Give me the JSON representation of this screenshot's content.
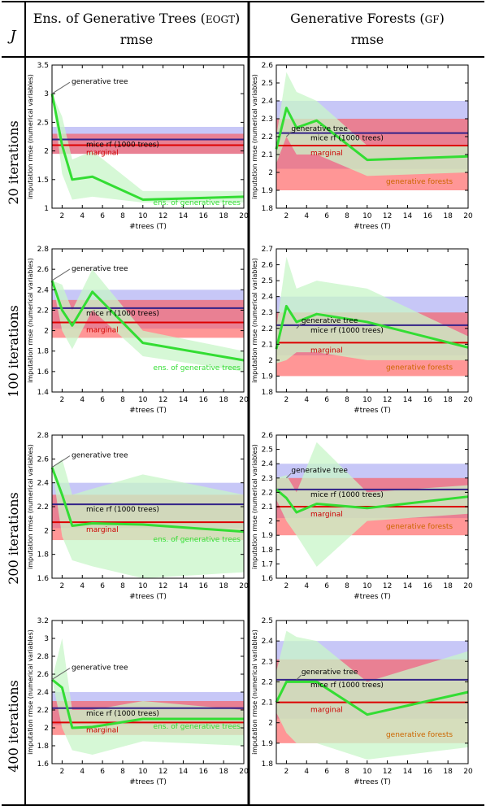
{
  "header": {
    "j_label": "J",
    "col1_title": "Ens. of Generative Trees",
    "col1_abbrev": "EOGT",
    "col1_sub": "rmse",
    "col2_title": "Generative Forests",
    "col2_abbrev": "GF",
    "col2_sub": "rmse"
  },
  "rows": [
    {
      "label": "20 iterations"
    },
    {
      "label": "100 iterations"
    },
    {
      "label": "200 iterations"
    },
    {
      "label": "400 iterations"
    }
  ],
  "colors": {
    "green": "#33dd33",
    "green_band": "#c8f5c8",
    "blue_line": "#332288",
    "blue_band": "#b9b9f5",
    "red_line": "#dd0000",
    "red_band": "#ff5050",
    "orange_text": "#cc6600",
    "label_red": "#cc0000"
  },
  "chart_data": [
    {
      "type": "line",
      "row": 0,
      "col": 0,
      "xlabel": "#trees (T)",
      "ylabel": "imputation rmse (numerical variables)",
      "xlim": [
        1,
        20
      ],
      "ylim": [
        1,
        3.5
      ],
      "xticks": [
        "2",
        "4",
        "6",
        "8",
        "10",
        "12",
        "14",
        "16",
        "18",
        "20"
      ],
      "yticks": [
        "1",
        "1.5",
        "2",
        "2.5",
        "3",
        "3.5"
      ],
      "yticks_values": [
        1,
        1.5,
        2,
        2.5,
        3,
        3.5
      ],
      "mice_rf": {
        "value": 2.2,
        "band": [
          1.95,
          2.42
        ],
        "label": "mice rf (1000 trees)"
      },
      "marginal": {
        "value": 2.1,
        "band": [
          1.95,
          2.3
        ],
        "label": "marginal"
      },
      "series": {
        "label": "ens. of generative trees",
        "x": [
          1,
          2,
          3,
          5,
          10,
          20
        ],
        "y": [
          3.0,
          2.1,
          1.5,
          1.55,
          1.15,
          1.2
        ],
        "lo": [
          3.0,
          1.6,
          1.15,
          1.2,
          1.1,
          1.1
        ],
        "hi": [
          3.0,
          2.6,
          1.85,
          2.0,
          1.3,
          1.3
        ]
      },
      "annotation": {
        "label": "generative tree",
        "x": 1,
        "y": 3.0
      }
    },
    {
      "type": "line",
      "row": 0,
      "col": 1,
      "xlabel": "#trees (T)",
      "ylabel": "imputation rmse (numerical variables)",
      "xlim": [
        1,
        20
      ],
      "ylim": [
        1.8,
        2.6
      ],
      "xticks": [
        "2",
        "4",
        "6",
        "8",
        "10",
        "12",
        "14",
        "16",
        "18",
        "20"
      ],
      "yticks": [
        "1.8",
        "1.9",
        "2",
        "2.1",
        "2.2",
        "2.3",
        "2.4",
        "2.5",
        "2.6"
      ],
      "yticks_values": [
        1.8,
        1.9,
        2,
        2.1,
        2.2,
        2.3,
        2.4,
        2.5,
        2.6
      ],
      "mice_rf": {
        "value": 2.22,
        "band": [
          2.02,
          2.4
        ],
        "label": "mice rf (1000 trees)"
      },
      "marginal": {
        "value": 2.15,
        "band": [
          1.9,
          2.3
        ],
        "label": "marginal"
      },
      "series": {
        "label": "generative forests",
        "x": [
          1,
          2,
          3,
          5,
          10,
          20
        ],
        "y": [
          2.13,
          2.36,
          2.25,
          2.29,
          2.07,
          2.09
        ],
        "lo": [
          2.05,
          2.2,
          2.1,
          2.1,
          1.98,
          2.0
        ],
        "hi": [
          2.2,
          2.56,
          2.45,
          2.4,
          2.15,
          2.15
        ]
      },
      "annotation": {
        "label": "generative tree",
        "x": 2,
        "y": 2.2
      }
    },
    {
      "type": "line",
      "row": 1,
      "col": 0,
      "xlabel": "#trees (T)",
      "ylabel": "imputation rmse (numerical variables)",
      "xlim": [
        1,
        20
      ],
      "ylim": [
        1.4,
        2.8
      ],
      "xticks": [
        "2",
        "4",
        "6",
        "8",
        "10",
        "12",
        "14",
        "16",
        "18",
        "20"
      ],
      "yticks": [
        "1.4",
        "1.6",
        "1.8",
        "2",
        "2.2",
        "2.4",
        "2.6",
        "2.8"
      ],
      "yticks_values": [
        1.4,
        1.6,
        1.8,
        2,
        2.2,
        2.4,
        2.6,
        2.8
      ],
      "mice_rf": {
        "value": 2.22,
        "band": [
          2.02,
          2.4
        ],
        "label": "mice rf (1000 trees)"
      },
      "marginal": {
        "value": 2.08,
        "band": [
          1.93,
          2.3
        ],
        "label": "marginal"
      },
      "series": {
        "label": "ens. of generative trees",
        "x": [
          1,
          2,
          3,
          5,
          10,
          20
        ],
        "y": [
          2.49,
          2.2,
          2.05,
          2.38,
          1.88,
          1.71
        ],
        "lo": [
          2.49,
          2.0,
          1.82,
          2.2,
          1.75,
          1.6
        ],
        "hi": [
          2.49,
          2.45,
          2.2,
          2.6,
          2.0,
          1.8
        ]
      },
      "annotation": {
        "label": "generative tree",
        "x": 1,
        "y": 2.49
      }
    },
    {
      "type": "line",
      "row": 1,
      "col": 1,
      "xlabel": "#trees (T)",
      "ylabel": "imputation rmse (numerical variables)",
      "xlim": [
        1,
        20
      ],
      "ylim": [
        1.8,
        2.7
      ],
      "xticks": [
        "2",
        "4",
        "6",
        "8",
        "10",
        "12",
        "14",
        "16",
        "18",
        "20"
      ],
      "yticks": [
        "1.8",
        "1.9",
        "2",
        "2.1",
        "2.2",
        "2.3",
        "2.4",
        "2.5",
        "2.6",
        "2.7"
      ],
      "yticks_values": [
        1.8,
        1.9,
        2,
        2.1,
        2.2,
        2.3,
        2.4,
        2.5,
        2.6,
        2.7
      ],
      "mice_rf": {
        "value": 2.22,
        "band": [
          2.03,
          2.4
        ],
        "label": "mice rf (1000 trees)"
      },
      "marginal": {
        "value": 2.11,
        "band": [
          1.9,
          2.3
        ],
        "label": "marginal"
      },
      "series": {
        "label": "generative forests",
        "x": [
          1,
          2,
          3,
          5,
          10,
          20
        ],
        "y": [
          2.07,
          2.34,
          2.24,
          2.29,
          2.24,
          2.08
        ],
        "lo": [
          1.98,
          2.0,
          2.05,
          2.05,
          2.0,
          2.0
        ],
        "hi": [
          2.2,
          2.65,
          2.45,
          2.5,
          2.45,
          2.15
        ]
      },
      "annotation": {
        "label": "generative tree",
        "x": 3,
        "y": 2.2
      }
    },
    {
      "type": "line",
      "row": 2,
      "col": 0,
      "xlabel": "#trees (T)",
      "ylabel": "imputation rmse (numerical variables)",
      "xlim": [
        1,
        20
      ],
      "ylim": [
        1.6,
        2.8
      ],
      "xticks": [
        "2",
        "4",
        "6",
        "8",
        "10",
        "12",
        "14",
        "16",
        "18",
        "20"
      ],
      "yticks": [
        "1.6",
        "1.8",
        "2",
        "2.2",
        "2.4",
        "2.6",
        "2.8"
      ],
      "yticks_values": [
        1.6,
        1.8,
        2,
        2.2,
        2.4,
        2.6,
        2.8
      ],
      "mice_rf": {
        "value": 2.22,
        "band": [
          2.02,
          2.4
        ],
        "label": "mice rf (1000 trees)"
      },
      "marginal": {
        "value": 2.07,
        "band": [
          1.92,
          2.3
        ],
        "label": "marginal"
      },
      "series": {
        "label": "ens. of generative trees",
        "x": [
          1,
          2,
          3,
          5,
          10,
          20
        ],
        "y": [
          2.53,
          2.3,
          2.04,
          2.06,
          2.05,
          1.99
        ],
        "lo": [
          2.53,
          1.95,
          1.75,
          1.7,
          1.6,
          1.65
        ],
        "hi": [
          2.53,
          2.6,
          2.3,
          2.35,
          2.47,
          2.3
        ]
      },
      "annotation": {
        "label": "generative tree",
        "x": 1,
        "y": 2.53
      }
    },
    {
      "type": "line",
      "row": 2,
      "col": 1,
      "xlabel": "#trees (T)",
      "ylabel": "imputation rmse (numerical variables)",
      "xlim": [
        1,
        20
      ],
      "ylim": [
        1.6,
        2.6
      ],
      "xticks": [
        "2",
        "4",
        "6",
        "8",
        "10",
        "12",
        "14",
        "16",
        "18",
        "20"
      ],
      "yticks": [
        "1.6",
        "1.7",
        "1.8",
        "1.9",
        "2",
        "2.1",
        "2.2",
        "2.3",
        "2.4",
        "2.5",
        "2.6"
      ],
      "yticks_values": [
        1.6,
        1.7,
        1.8,
        1.9,
        2,
        2.1,
        2.2,
        2.3,
        2.4,
        2.5,
        2.6
      ],
      "mice_rf": {
        "value": 2.22,
        "band": [
          2.02,
          2.4
        ],
        "label": "mice rf (1000 trees)"
      },
      "marginal": {
        "value": 2.1,
        "band": [
          1.9,
          2.3
        ],
        "label": "marginal"
      },
      "series": {
        "label": "generative forests",
        "x": [
          1,
          2,
          3,
          5,
          10,
          20
        ],
        "y": [
          2.22,
          2.16,
          2.06,
          2.12,
          2.09,
          2.17
        ],
        "lo": [
          2.15,
          2.0,
          1.9,
          1.68,
          2.0,
          2.05
        ],
        "hi": [
          2.3,
          2.32,
          2.2,
          2.55,
          2.2,
          2.25
        ]
      },
      "annotation": {
        "label": "generative tree",
        "x": 2,
        "y": 2.3
      }
    },
    {
      "type": "line",
      "row": 3,
      "col": 0,
      "xlabel": "#trees (T)",
      "ylabel": "imputation rmse (numerical variables)",
      "xlim": [
        1,
        20
      ],
      "ylim": [
        1.6,
        3.2
      ],
      "xticks": [
        "2",
        "4",
        "6",
        "8",
        "10",
        "12",
        "14",
        "16",
        "18",
        "20"
      ],
      "yticks": [
        "1.6",
        "1.8",
        "2",
        "2.2",
        "2.4",
        "2.6",
        "2.8",
        "3",
        "3.2"
      ],
      "yticks_values": [
        1.6,
        1.8,
        2,
        2.2,
        2.4,
        2.6,
        2.8,
        3,
        3.2
      ],
      "mice_rf": {
        "value": 2.22,
        "band": [
          2.03,
          2.4
        ],
        "label": "mice rf (1000 trees)"
      },
      "marginal": {
        "value": 2.06,
        "band": [
          1.92,
          2.3
        ],
        "label": "marginal"
      },
      "series": {
        "label": "ens. of generative trees",
        "x": [
          1,
          2,
          3,
          5,
          10,
          20
        ],
        "y": [
          2.54,
          2.45,
          2.0,
          2.01,
          2.1,
          2.1
        ],
        "lo": [
          2.54,
          2.0,
          1.75,
          1.7,
          1.85,
          1.8
        ],
        "hi": [
          2.54,
          3.0,
          2.2,
          2.2,
          2.3,
          2.2
        ]
      },
      "annotation": {
        "label": "generative tree",
        "x": 1,
        "y": 2.54
      }
    },
    {
      "type": "line",
      "row": 3,
      "col": 1,
      "xlabel": "#trees (T)",
      "ylabel": "imputation rmse (numerical variables)",
      "xlim": [
        1,
        20
      ],
      "ylim": [
        1.8,
        2.5
      ],
      "xticks": [
        "2",
        "4",
        "6",
        "8",
        "10",
        "12",
        "14",
        "16",
        "18",
        "20"
      ],
      "yticks": [
        "1.8",
        "1.9",
        "2",
        "2.1",
        "2.2",
        "2.3",
        "2.4",
        "2.5"
      ],
      "yticks_values": [
        1.8,
        1.9,
        2,
        2.1,
        2.2,
        2.3,
        2.4,
        2.5
      ],
      "mice_rf": {
        "value": 2.21,
        "band": [
          2.02,
          2.4
        ],
        "label": "mice rf (1000 trees)"
      },
      "marginal": {
        "value": 2.1,
        "band": [
          1.9,
          2.31
        ],
        "label": "marginal"
      },
      "series": {
        "label": "generative forests",
        "x": [
          1,
          2,
          3,
          5,
          10,
          20
        ],
        "y": [
          2.1,
          2.2,
          2.2,
          2.2,
          2.04,
          2.15
        ],
        "lo": [
          2.05,
          1.95,
          1.9,
          1.9,
          1.82,
          1.88
        ],
        "hi": [
          2.25,
          2.45,
          2.42,
          2.4,
          2.2,
          2.35
        ]
      },
      "annotation": {
        "label": "generative tree",
        "x": 3,
        "y": 2.21
      }
    }
  ]
}
